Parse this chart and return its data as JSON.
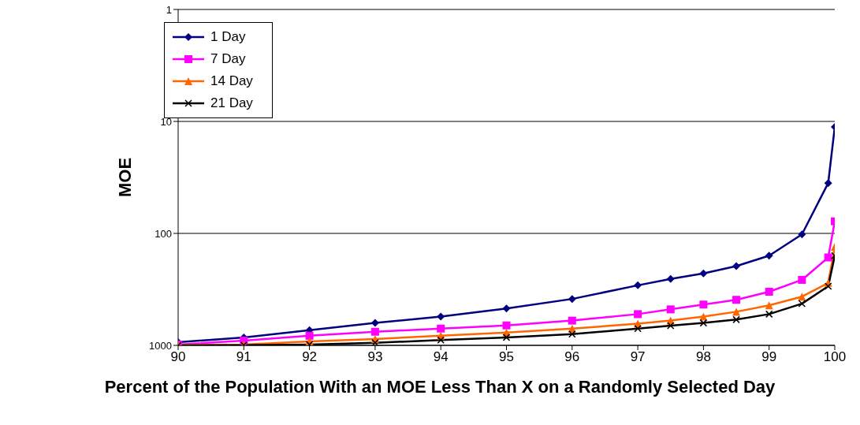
{
  "chart_data": {
    "type": "line",
    "xlabel": "Percent of the Population With an MOE Less Than X on a Randomly Selected Day",
    "ylabel": "MOE",
    "x": [
      90,
      91,
      92,
      93,
      94,
      95,
      96,
      97,
      97.5,
      98,
      98.5,
      99,
      99.5,
      99.9,
      100
    ],
    "series": [
      {
        "name": "1 Day",
        "color": "#000080",
        "marker": "diamond",
        "values": [
          936,
          849,
          731,
          631,
          553,
          469,
          385,
          291,
          255,
          228,
          196,
          158,
          102,
          35.5,
          11.2
        ]
      },
      {
        "name": "7 Day",
        "color": "#ff00ff",
        "marker": "square",
        "values": [
          984,
          906,
          821,
          756,
          708,
          663,
          601,
          526,
          477,
          432,
          392,
          332,
          260,
          164,
          78
        ]
      },
      {
        "name": "14 Day",
        "color": "#ff6600",
        "marker": "triangle",
        "values": [
          990,
          984,
          921,
          877,
          821,
          769,
          708,
          641,
          601,
          553,
          501,
          439,
          367,
          277,
          132
        ]
      },
      {
        "name": "21 Day",
        "color": "#000000",
        "marker": "cross",
        "values": [
          1000,
          995,
          984,
          950,
          896,
          849,
          794,
          708,
          667,
          631,
          589,
          526,
          424,
          296,
          158
        ]
      }
    ],
    "log": "y",
    "ylim": [
      1000,
      1
    ],
    "yticks": [
      1,
      10,
      100,
      1000
    ],
    "xlim": [
      90,
      100
    ],
    "xticks": [
      90,
      91,
      92,
      93,
      94,
      95,
      96,
      97,
      98,
      99,
      100
    ],
    "grid": "y",
    "legend": "top left",
    "line_style": "solid"
  }
}
